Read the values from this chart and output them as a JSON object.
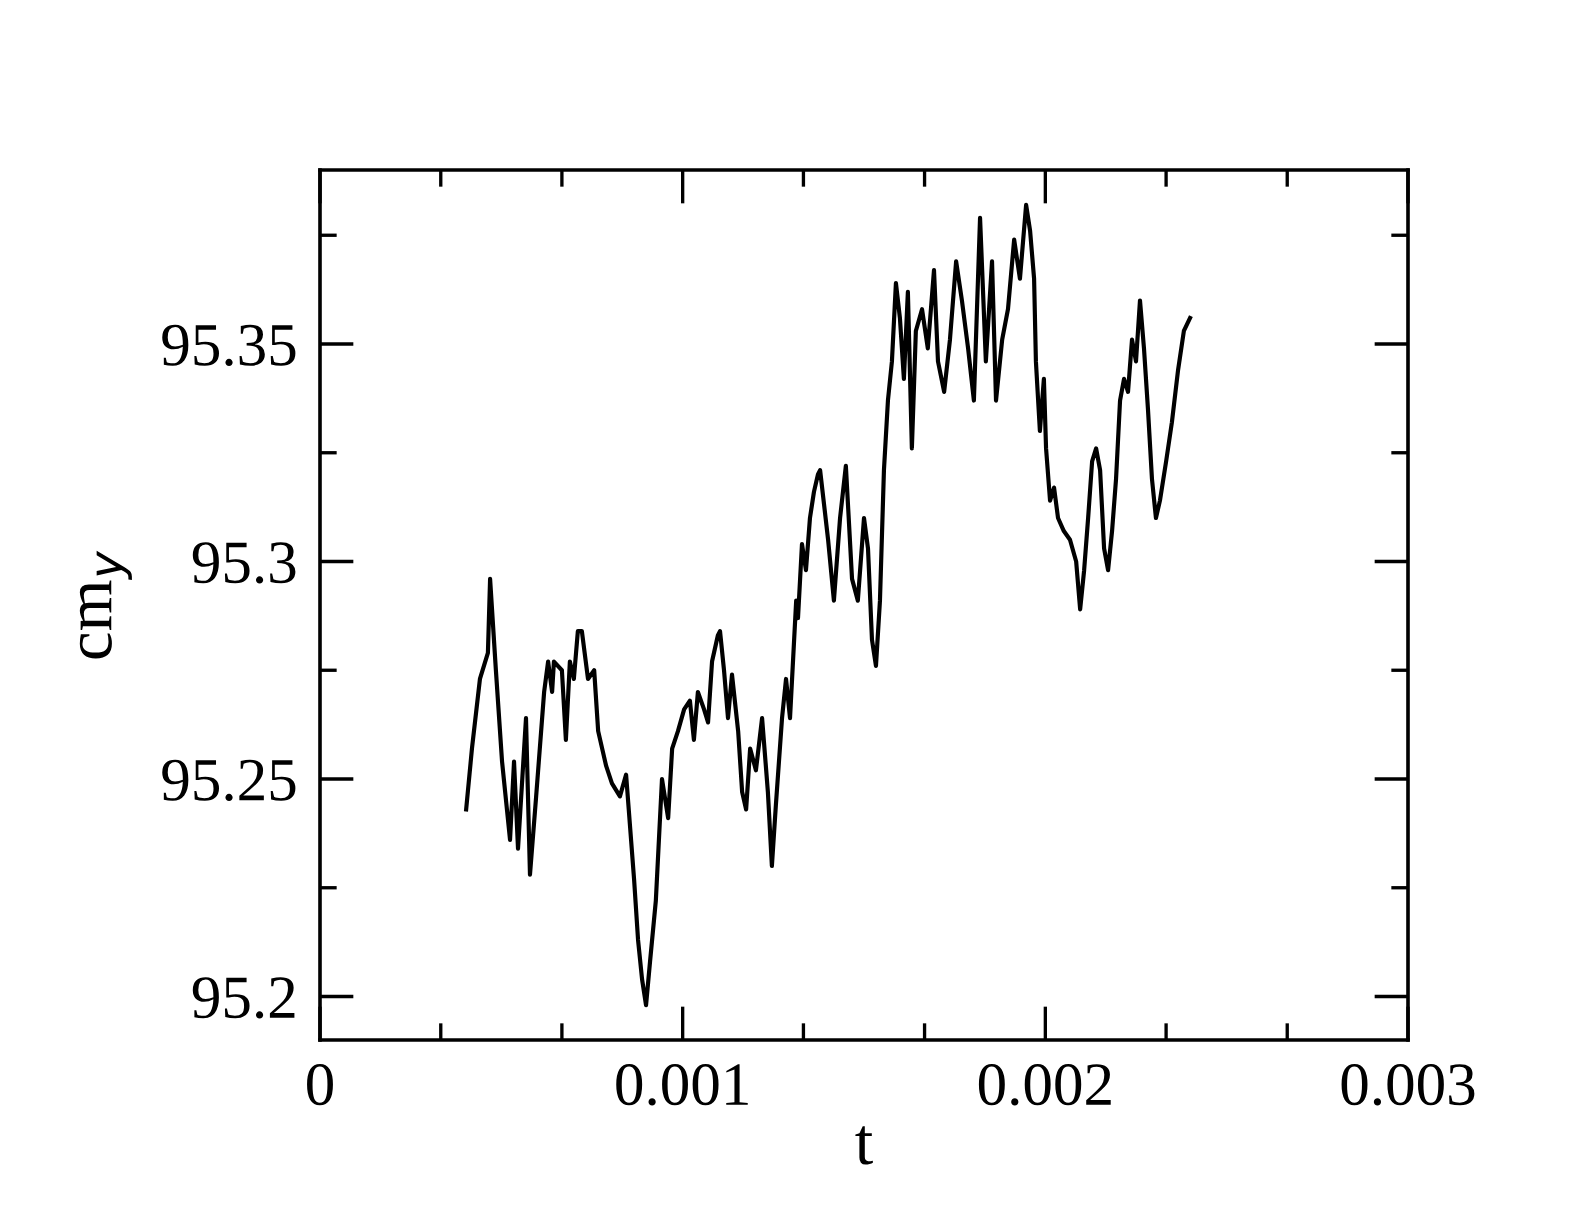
{
  "chart_data": {
    "type": "line",
    "xlabel": "t",
    "ylabel": "cm$_{y}$",
    "xlim": [
      0,
      0.003
    ],
    "ylim": [
      95.19,
      95.39
    ],
    "xticks": [
      0,
      {
        "value": 0.000333,
        "label": null
      },
      {
        "value": 0.000667,
        "label": null
      },
      0.001,
      {
        "value": 0.001333,
        "label": null
      },
      {
        "value": 0.001667,
        "label": null
      },
      0.002,
      {
        "value": 0.002333,
        "label": null
      },
      {
        "value": 0.002667,
        "label": null
      },
      0.003
    ],
    "yticks": [
      95.2,
      {
        "value": 95.225,
        "label": null
      },
      95.25,
      {
        "value": 95.275,
        "label": null
      },
      95.3,
      {
        "value": 95.325,
        "label": null
      },
      95.35,
      {
        "value": 95.375,
        "label": null
      }
    ],
    "grid": false,
    "marker": "none",
    "line_style": "solid",
    "series": [
      {
        "color": "#000000",
        "x": [
          0.000403,
          0.000419,
          0.000441,
          0.000463,
          0.000469,
          0.000485,
          0.000502,
          0.000524,
          0.000535,
          0.000546,
          0.000568,
          0.000579,
          0.000596,
          0.000618,
          0.000629,
          0.00064,
          0.000645,
          0.000667,
          0.000678,
          0.000689,
          0.0007,
          0.000711,
          0.000722,
          0.000739,
          0.000756,
          0.000767,
          0.000789,
          0.000805,
          0.000827,
          0.000844,
          0.000866,
          0.000877,
          0.000888,
          0.000899,
          0.00091,
          0.000926,
          0.000943,
          0.00096,
          0.000971,
          0.000987,
          0.001004,
          0.00102,
          0.001031,
          0.001042,
          0.001059,
          0.00107,
          0.001081,
          0.001097,
          0.001103,
          0.001114,
          0.001125,
          0.001136,
          0.001153,
          0.001164,
          0.001175,
          0.001186,
          0.001202,
          0.001219,
          0.001235,
          0.001246,
          0.001257,
          0.001274,
          0.001285,
          0.001296,
          0.001313,
          0.001318,
          0.001329,
          0.00134,
          0.001351,
          0.001362,
          0.001373,
          0.001379,
          0.001401,
          0.001417,
          0.001434,
          0.00145,
          0.001467,
          0.001483,
          0.0015,
          0.001511,
          0.001522,
          0.001533,
          0.001544,
          0.001555,
          0.001566,
          0.001577,
          0.001588,
          0.001599,
          0.00161,
          0.001621,
          0.001632,
          0.001643,
          0.00166,
          0.001676,
          0.001693,
          0.001704,
          0.001721,
          0.001737,
          0.001754,
          0.00177,
          0.001787,
          0.001803,
          0.00182,
          0.001836,
          0.001853,
          0.001864,
          0.001881,
          0.001897,
          0.001914,
          0.00193,
          0.001947,
          0.001958,
          0.001969,
          0.001974,
          0.001985,
          0.001996,
          0.002002,
          0.002013,
          0.002024,
          0.002035,
          0.002051,
          0.002068,
          0.002085,
          0.002096,
          0.002107,
          0.002118,
          0.002129,
          0.00214,
          0.002151,
          0.002162,
          0.002173,
          0.002184,
          0.002195,
          0.002206,
          0.002217,
          0.002228,
          0.002239,
          0.00225,
          0.002261,
          0.002272,
          0.002283,
          0.002294,
          0.002305,
          0.002316,
          0.002333,
          0.002349,
          0.002366,
          0.002382,
          0.002399
        ],
        "values": [
          95.243,
          95.257,
          95.273,
          95.279,
          95.296,
          95.275,
          95.254,
          95.236,
          95.254,
          95.234,
          95.264,
          95.228,
          95.246,
          95.27,
          95.277,
          95.27,
          95.277,
          95.275,
          95.259,
          95.277,
          95.273,
          95.284,
          95.284,
          95.273,
          95.275,
          95.261,
          95.253,
          95.249,
          95.246,
          95.251,
          95.227,
          95.213,
          95.204,
          95.198,
          95.208,
          95.222,
          95.25,
          95.241,
          95.257,
          95.261,
          95.266,
          95.268,
          95.259,
          95.27,
          95.266,
          95.263,
          95.277,
          95.283,
          95.284,
          95.275,
          95.264,
          95.274,
          95.261,
          95.247,
          95.243,
          95.257,
          95.252,
          95.264,
          95.247,
          95.23,
          95.244,
          95.264,
          95.273,
          95.264,
          95.291,
          95.287,
          95.304,
          95.298,
          95.31,
          95.316,
          95.32,
          95.321,
          95.305,
          95.291,
          95.31,
          95.322,
          95.296,
          95.291,
          95.31,
          95.303,
          95.282,
          95.276,
          95.291,
          95.321,
          95.337,
          95.346,
          95.364,
          95.356,
          95.342,
          95.362,
          95.326,
          95.353,
          95.358,
          95.349,
          95.367,
          95.346,
          95.339,
          95.351,
          95.369,
          95.36,
          95.349,
          95.337,
          95.379,
          95.346,
          95.369,
          95.337,
          95.351,
          95.358,
          95.374,
          95.365,
          95.382,
          95.376,
          95.365,
          95.346,
          95.33,
          95.342,
          95.326,
          95.314,
          95.317,
          95.31,
          95.307,
          95.305,
          95.3,
          95.289,
          95.298,
          95.31,
          95.323,
          95.326,
          95.321,
          95.303,
          95.298,
          95.307,
          95.319,
          95.337,
          95.342,
          95.339,
          95.351,
          95.346,
          95.36,
          95.349,
          95.335,
          95.319,
          95.31,
          95.314,
          95.323,
          95.332,
          95.344,
          95.353,
          95.356
        ]
      }
    ]
  }
}
